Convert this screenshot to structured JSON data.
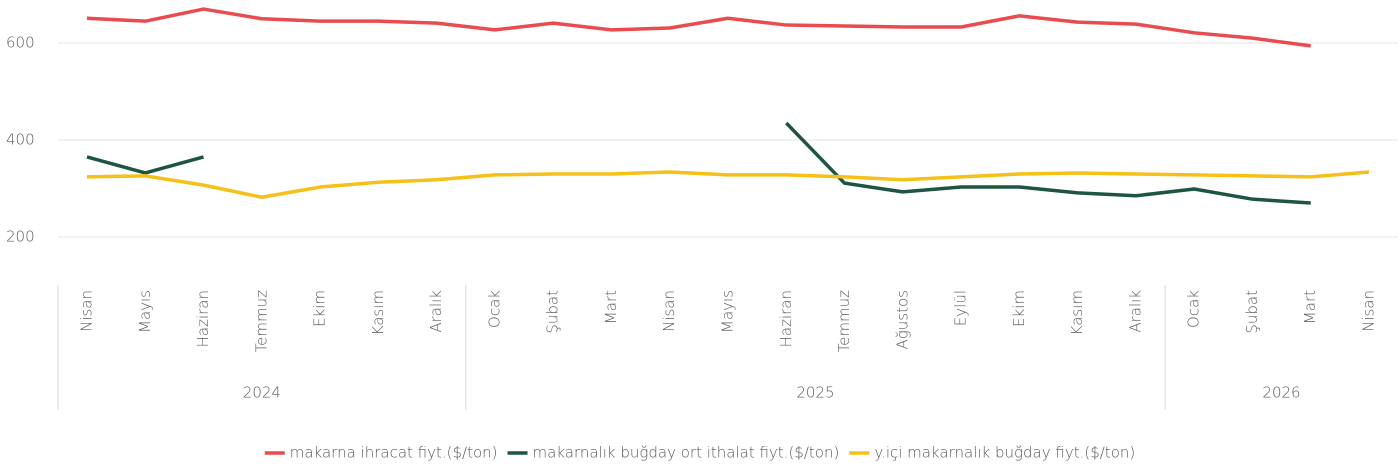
{
  "chart_data": {
    "type": "line",
    "categories": [
      "Nisan",
      "Mayıs",
      "Haziran",
      "Temmuz",
      "Ekim",
      "Kasım",
      "Aralık",
      "Ocak",
      "Şubat",
      "Mart",
      "Nisan",
      "Mayıs",
      "Haziran",
      "Temmuz",
      "Ağustos",
      "Eylül",
      "Ekim",
      "Kasım",
      "Aralık",
      "Ocak",
      "Şubat",
      "Mart",
      "Nisan"
    ],
    "groups": [
      {
        "label": "2024",
        "count": 7
      },
      {
        "label": "2025",
        "count": 12
      },
      {
        "label": "2026",
        "count": 4
      }
    ],
    "series": [
      {
        "name": "makarna ihracat fiyt.($/ton)",
        "color": "#e84c4f",
        "values": [
          651,
          645,
          670,
          650,
          645,
          645,
          641,
          627,
          641,
          627,
          631,
          651,
          637,
          635,
          633,
          633,
          656,
          643,
          639,
          621,
          610,
          594,
          null
        ]
      },
      {
        "name": "makarnalık buğday ort ithalat fiyt.($/ton)",
        "color": "#1d5444",
        "values": [
          365,
          332,
          365,
          null,
          null,
          null,
          null,
          null,
          null,
          null,
          null,
          null,
          435,
          311,
          293,
          303,
          303,
          291,
          285,
          299,
          278,
          270,
          null
        ]
      },
      {
        "name": "y.içi makarnalık buğday fiyt.($/ton)",
        "color": "#f5c018",
        "values": [
          324,
          326,
          307,
          282,
          303,
          313,
          318,
          328,
          330,
          330,
          334,
          328,
          328,
          324,
          318,
          324,
          330,
          332,
          330,
          328,
          326,
          324,
          334
        ]
      }
    ],
    "ylim": [
      100,
      700
    ],
    "yticks": [
      200,
      400,
      600
    ],
    "grid": true,
    "legend": "bottom"
  }
}
